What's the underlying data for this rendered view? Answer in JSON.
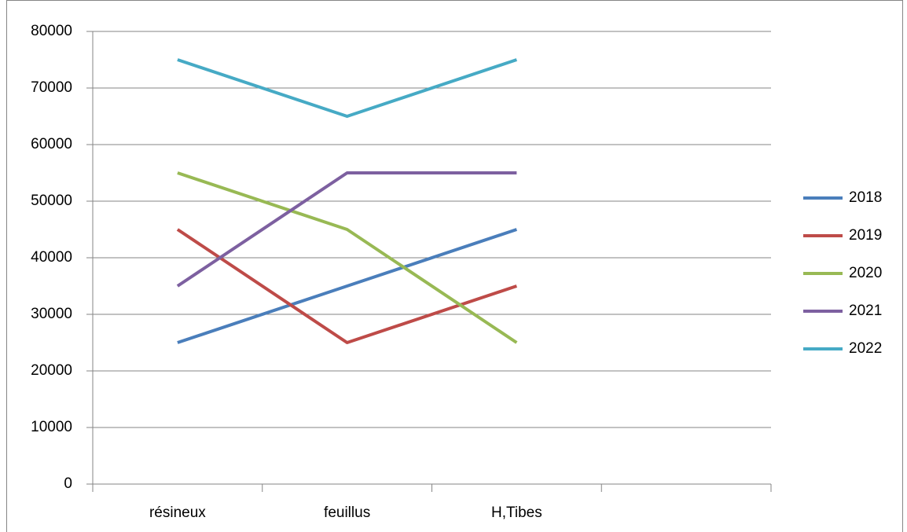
{
  "chart_data": {
    "type": "line",
    "categories": [
      "résineux",
      "feuillus",
      "H,Tibes",
      null
    ],
    "series": [
      {
        "name": "2018",
        "color": "#4a7ebb",
        "values": [
          25000,
          35000,
          45000,
          null
        ]
      },
      {
        "name": "2019",
        "color": "#be4b48",
        "values": [
          45000,
          25000,
          35000,
          null
        ]
      },
      {
        "name": "2020",
        "color": "#98b954",
        "values": [
          55000,
          45000,
          25000,
          null
        ]
      },
      {
        "name": "2021",
        "color": "#7d60a0",
        "values": [
          35000,
          55000,
          55000,
          null
        ]
      },
      {
        "name": "2022",
        "color": "#46aac5",
        "values": [
          75000,
          65000,
          75000,
          null
        ]
      }
    ],
    "ylim": [
      0,
      80000
    ],
    "yticks": [
      0,
      10000,
      20000,
      30000,
      40000,
      50000,
      60000,
      70000,
      80000
    ],
    "grid": true,
    "legend": "right"
  }
}
